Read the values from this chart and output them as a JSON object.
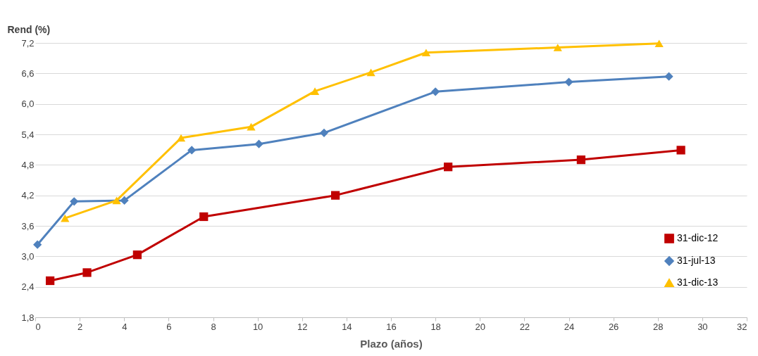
{
  "chart_data": {
    "type": "line",
    "xlabel": "Plazo (años)",
    "ylabel": "Rend (%)",
    "xlim": [
      0,
      32
    ],
    "xticks": [
      0,
      2,
      4,
      6,
      8,
      10,
      12,
      14,
      16,
      18,
      20,
      22,
      24,
      26,
      28,
      30,
      32
    ],
    "ylim": [
      1.8,
      7.2
    ],
    "yticks": [
      {
        "value": 1.8,
        "label": "1,8"
      },
      {
        "value": 2.4,
        "label": "2,4"
      },
      {
        "value": 3.0,
        "label": "3,0"
      },
      {
        "value": 3.6,
        "label": "3,6"
      },
      {
        "value": 4.2,
        "label": "4,2"
      },
      {
        "value": 4.8,
        "label": "4,8"
      },
      {
        "value": 5.4,
        "label": "5,4"
      },
      {
        "value": 6.0,
        "label": "6,0"
      },
      {
        "value": 6.6,
        "label": "6,6"
      },
      {
        "value": 7.2,
        "label": "7,2"
      }
    ],
    "grid": "y",
    "legend": "bottom right",
    "line_style": "solid",
    "series": [
      {
        "name": "31-dic-12",
        "color": "#c00000",
        "marker": "square",
        "x": [
          0.67,
          2.33,
          4.59,
          7.58,
          13.5,
          18.57,
          24.55,
          29.04
        ],
        "values": [
          2.52,
          2.68,
          3.03,
          3.78,
          4.2,
          4.76,
          4.9,
          5.09
        ]
      },
      {
        "name": "31-jul-13",
        "color": "#4f81bd",
        "marker": "diamond",
        "x": [
          0.1,
          1.75,
          4.01,
          7.04,
          10.06,
          12.99,
          18.0,
          24.0,
          28.5
        ],
        "values": [
          3.23,
          4.08,
          4.1,
          5.09,
          5.21,
          5.43,
          6.24,
          6.43,
          6.54
        ]
      },
      {
        "name": "31-dic-13",
        "color": "#ffc000",
        "marker": "triangle",
        "x": [
          1.34,
          3.66,
          6.56,
          9.71,
          12.58,
          15.1,
          17.58,
          23.5,
          28.06
        ],
        "values": [
          3.75,
          4.1,
          5.33,
          5.55,
          6.25,
          6.62,
          7.01,
          7.11,
          7.19
        ]
      }
    ]
  }
}
